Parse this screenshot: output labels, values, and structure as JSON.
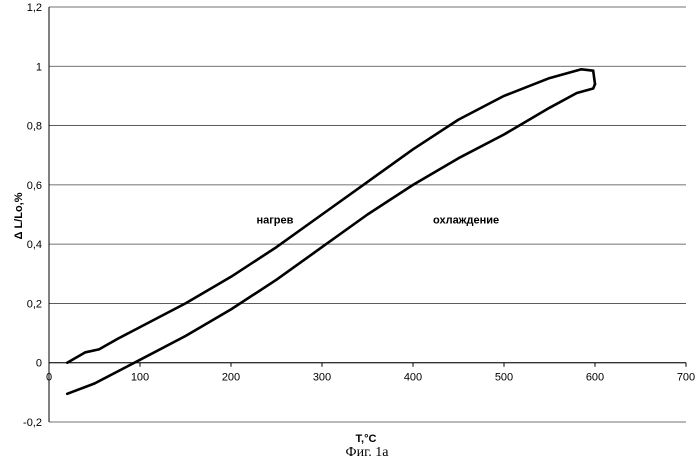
{
  "chart_data": {
    "type": "line",
    "title": "",
    "xlabel": "T,°C",
    "ylabel": "Δ L/Lo,%",
    "caption": "Фиг. 1а",
    "xlim": [
      0,
      700
    ],
    "ylim": [
      -0.2,
      1.2
    ],
    "x_ticks": [
      "0",
      "100",
      "200",
      "300",
      "400",
      "500",
      "600",
      "700"
    ],
    "y_ticks": [
      "-0,2",
      "0",
      "0,2",
      "0,4",
      "0,6",
      "0,8",
      "1",
      "1,2"
    ],
    "grid": "horizontal",
    "legend": "none",
    "annotations": [
      {
        "text": "нагрев",
        "x": 228,
        "y": 0.47
      },
      {
        "text": "охлаждение",
        "x": 422,
        "y": 0.47
      }
    ],
    "series": [
      {
        "label": "нагрев",
        "x": [
          20,
          40,
          55,
          75,
          100,
          150,
          200,
          250,
          300,
          350,
          400,
          450,
          500,
          550,
          585,
          598
        ],
        "y": [
          0.0,
          0.035,
          0.045,
          0.08,
          0.12,
          0.2,
          0.29,
          0.39,
          0.5,
          0.61,
          0.72,
          0.82,
          0.9,
          0.96,
          0.99,
          0.985
        ]
      },
      {
        "label": "охлаждение",
        "x": [
          600,
          598,
          580,
          550,
          500,
          450,
          400,
          350,
          300,
          250,
          200,
          150,
          100,
          50,
          20
        ],
        "y": [
          0.94,
          0.925,
          0.91,
          0.86,
          0.77,
          0.69,
          0.6,
          0.5,
          0.39,
          0.28,
          0.18,
          0.09,
          0.01,
          -0.07,
          -0.105
        ]
      }
    ]
  }
}
